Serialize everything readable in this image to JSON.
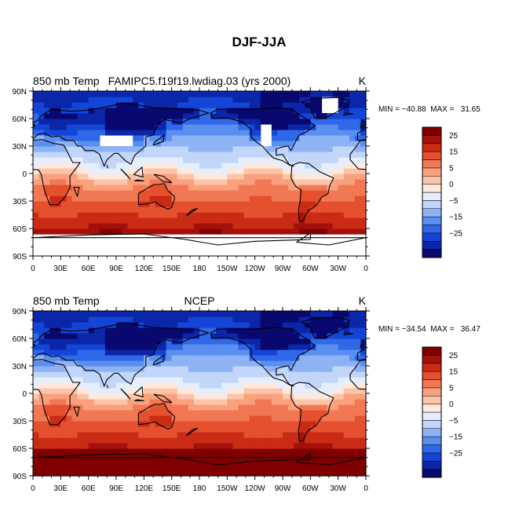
{
  "figure": {
    "title": "DJF-JJA"
  },
  "colors": [
    "#08086e",
    "#0b26a8",
    "#1345d6",
    "#2f68e8",
    "#5a8ff0",
    "#8eb3f5",
    "#c2d6fa",
    "#e4eefd",
    "#ffe8dc",
    "#fdc4aa",
    "#f9a07c",
    "#f27854",
    "#e5502f",
    "#c92b15",
    "#a3110a",
    "#800000"
  ],
  "chart_data": [
    {
      "type": "heatmap",
      "name": "model-panel",
      "left_label": "850 mb Temp",
      "center_label": "FAMIPC5.f19f19.lwdiag.03 (yrs 2000)",
      "units_label": "K",
      "stats_text": "MIN = −40.88  MAX =   31.65",
      "min": -40.88,
      "max": 31.65,
      "missing_regions": [
        "Tibetan Plateau",
        "Rocky Mountains",
        "Greenland interior",
        "Antarctica"
      ],
      "x_ticks": [
        "0",
        "30E",
        "60E",
        "90E",
        "120E",
        "150E",
        "180",
        "150W",
        "120W",
        "90W",
        "60W",
        "30W",
        "0"
      ],
      "y_ticks": [
        "90N",
        "60N",
        "30N",
        "0",
        "30S",
        "60S",
        "90S"
      ],
      "colorbar_levels": [
        -35,
        -30,
        -25,
        -20,
        -15,
        -10,
        -5,
        -2,
        0,
        2,
        5,
        10,
        15,
        20,
        25,
        30
      ],
      "colorbar_tick_labels": [
        "25",
        "15",
        "5",
        "0",
        "−5",
        "−15",
        "−25"
      ]
    },
    {
      "type": "heatmap",
      "name": "obs-panel",
      "left_label": "850 mb Temp",
      "center_label": "NCEP",
      "units_label": "K",
      "stats_text": "MIN = −34.54  MAX =   36.47",
      "min": -34.54,
      "max": 36.47,
      "missing_regions": [],
      "x_ticks": [
        "0",
        "30E",
        "60E",
        "90E",
        "120E",
        "150E",
        "180",
        "150W",
        "120W",
        "90W",
        "60W",
        "30W",
        "0"
      ],
      "y_ticks": [
        "90N",
        "60N",
        "30N",
        "0",
        "30S",
        "60S",
        "90S"
      ],
      "colorbar_levels": [
        -35,
        -30,
        -25,
        -20,
        -15,
        -10,
        -5,
        -2,
        0,
        2,
        5,
        10,
        15,
        20,
        25,
        30
      ],
      "colorbar_tick_labels": [
        "25",
        "15",
        "5",
        "0",
        "−5",
        "−15",
        "−25"
      ]
    }
  ]
}
